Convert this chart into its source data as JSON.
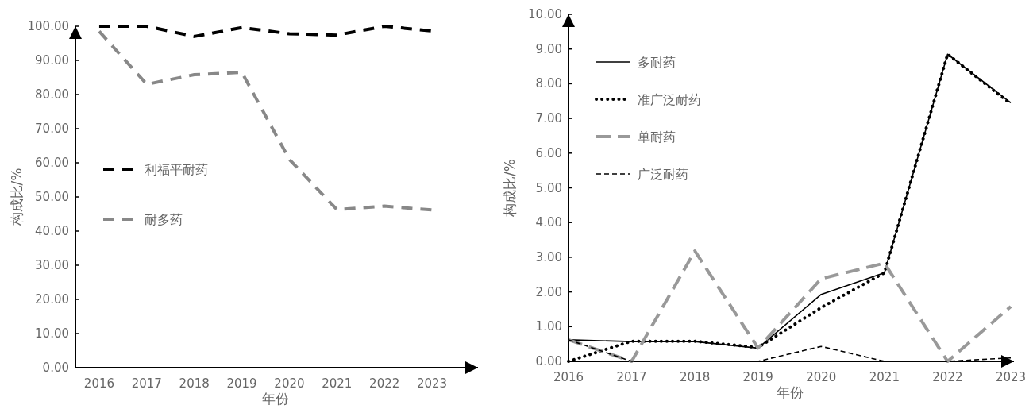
{
  "chart_data": [
    {
      "type": "line",
      "xlabel": "年份",
      "ylabel": "构成比/%",
      "categories": [
        "2016",
        "2017",
        "2018",
        "2019",
        "2020",
        "2021",
        "2022",
        "2023"
      ],
      "ylim": [
        0,
        100
      ],
      "yticks": [
        {
          "value": 0,
          "label": "0.00"
        },
        {
          "value": 10,
          "label": "10.00"
        },
        {
          "value": 20,
          "label": "20.00"
        },
        {
          "value": 30,
          "label": "30.00"
        },
        {
          "value": 40,
          "label": "40.00"
        },
        {
          "value": 50,
          "label": "50.00"
        },
        {
          "value": 60,
          "label": "60.00"
        },
        {
          "value": 70,
          "label": "70.00"
        },
        {
          "value": 80,
          "label": "80.00"
        },
        {
          "value": 90,
          "label": "90.00"
        },
        {
          "value": 100,
          "label": "100.00"
        }
      ],
      "legend": "left",
      "grid": false,
      "series": [
        {
          "name": "利福平耐药",
          "color": "#000000",
          "line_style": "dashed",
          "values": [
            100,
            100,
            97,
            99.6,
            97.8,
            97.4,
            100,
            98.6
          ]
        },
        {
          "name": "耐多药",
          "color": "#888888",
          "line_style": "dashed",
          "values": [
            98.5,
            83,
            85.8,
            86.5,
            61,
            46.3,
            47.3,
            46.2
          ]
        }
      ]
    },
    {
      "type": "line",
      "xlabel": "年份",
      "ylabel": "构成比/%",
      "categories": [
        "2016",
        "2017",
        "2018",
        "2019",
        "2020",
        "2021",
        "2022",
        "2023"
      ],
      "ylim": [
        0,
        10
      ],
      "yticks": [
        {
          "value": 0,
          "label": "0.00"
        },
        {
          "value": 1,
          "label": "1.00"
        },
        {
          "value": 2,
          "label": "2.00"
        },
        {
          "value": 3,
          "label": "3.00"
        },
        {
          "value": 4,
          "label": "4.00"
        },
        {
          "value": 5,
          "label": "5.00"
        },
        {
          "value": 6,
          "label": "6.00"
        },
        {
          "value": 7,
          "label": "7.00"
        },
        {
          "value": 8,
          "label": "8.00"
        },
        {
          "value": 9,
          "label": "9.00"
        },
        {
          "value": 10,
          "label": "10.00"
        }
      ],
      "legend": "top left",
      "grid": false,
      "series": [
        {
          "name": "多耐药",
          "color": "#000000",
          "line_style": "solid",
          "values": [
            0.62,
            0.57,
            0.57,
            0.38,
            1.93,
            2.55,
            8.85,
            7.45
          ]
        },
        {
          "name": "准广泛耐药",
          "color": "#000000",
          "line_style": "dotted",
          "values": [
            0,
            0.58,
            0.58,
            0.4,
            1.55,
            2.55,
            8.85,
            7.42
          ]
        },
        {
          "name": "单耐药",
          "color": "#999999",
          "line_style": "longdash",
          "values": [
            0.62,
            0,
            3.18,
            0.38,
            2.38,
            2.83,
            0,
            1.58
          ]
        },
        {
          "name": "广泛耐药",
          "color": "#000000",
          "line_style": "shortdash",
          "values": [
            0.62,
            0,
            0,
            0,
            0.43,
            0,
            0,
            0.1
          ]
        }
      ]
    }
  ]
}
